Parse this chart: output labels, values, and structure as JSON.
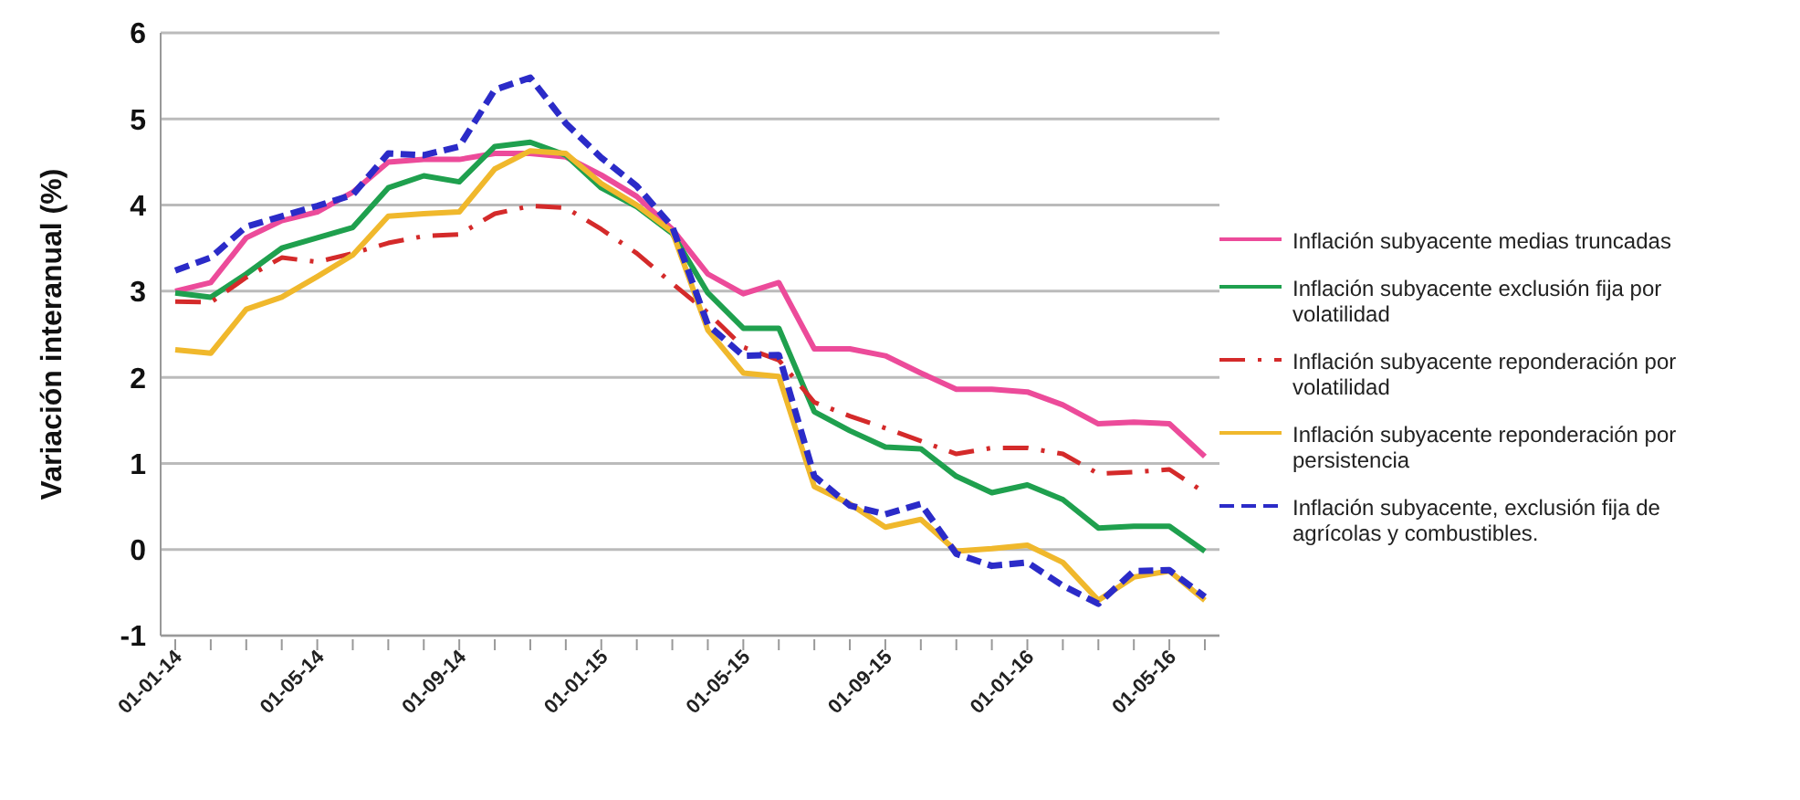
{
  "chart_data": {
    "type": "line",
    "ylabel": "Variación interanual (%)",
    "categories": [
      "01-01-14",
      null,
      null,
      null,
      "01-05-14",
      null,
      null,
      null,
      "01-09-14",
      null,
      null,
      null,
      "01-01-15",
      null,
      null,
      null,
      "01-05-15",
      null,
      null,
      null,
      "01-09-15",
      null,
      null,
      null,
      "01-01-16",
      null,
      null,
      null,
      "01-05-16",
      null
    ],
    "series": [
      {
        "name": "Inflación subyacente medias truncadas",
        "color": "#ec4b9a",
        "line_style": "solid",
        "values": [
          3.0,
          3.1,
          3.62,
          3.82,
          3.92,
          4.15,
          4.5,
          4.53,
          4.53,
          4.6,
          4.6,
          4.56,
          4.35,
          4.1,
          3.72,
          3.2,
          2.97,
          3.1,
          2.33,
          2.33,
          2.25,
          2.05,
          1.86,
          1.86,
          1.83,
          1.68,
          1.46,
          1.48,
          1.46,
          1.08
        ]
      },
      {
        "name": "Inflación subyacente exclusión fija por volatilidad",
        "color": "#1fa04e",
        "line_style": "solid",
        "values": [
          2.98,
          2.93,
          3.2,
          3.5,
          3.62,
          3.74,
          4.2,
          4.34,
          4.27,
          4.68,
          4.73,
          4.58,
          4.2,
          3.98,
          3.67,
          2.98,
          2.57,
          2.57,
          1.6,
          1.38,
          1.19,
          1.17,
          0.85,
          0.66,
          0.75,
          0.58,
          0.25,
          0.27,
          0.27,
          -0.02
        ]
      },
      {
        "name": "Inflación subyacente reponderación por volatilidad",
        "color": "#d42a2a",
        "line_style": "dashdot",
        "values": [
          2.88,
          2.87,
          3.16,
          3.39,
          3.34,
          3.44,
          3.56,
          3.64,
          3.66,
          3.9,
          3.99,
          3.97,
          3.72,
          3.44,
          3.09,
          2.75,
          2.35,
          2.2,
          1.71,
          1.55,
          1.41,
          1.26,
          1.11,
          1.18,
          1.18,
          1.11,
          0.88,
          0.9,
          0.93,
          0.66
        ]
      },
      {
        "name": "Inflación subyacente reponderación por persistencia",
        "color": "#f0b82c",
        "line_style": "solid",
        "values": [
          2.32,
          2.28,
          2.79,
          2.93,
          3.17,
          3.42,
          3.87,
          3.9,
          3.92,
          4.42,
          4.63,
          4.6,
          4.25,
          4.0,
          3.69,
          2.55,
          2.05,
          2.01,
          0.73,
          0.53,
          0.26,
          0.35,
          -0.02,
          0.01,
          0.05,
          -0.15,
          -0.59,
          -0.32,
          -0.25,
          -0.59
        ]
      },
      {
        "name": "Inflación subyacente, exclusión fija de agrícolas y combustibles.",
        "color": "#2b2bc8",
        "line_style": "dashed",
        "values": [
          3.24,
          3.39,
          3.75,
          3.87,
          3.99,
          4.12,
          4.6,
          4.58,
          4.68,
          5.34,
          5.48,
          4.95,
          4.55,
          4.22,
          3.75,
          2.61,
          2.25,
          2.26,
          0.85,
          0.51,
          0.41,
          0.53,
          -0.05,
          -0.19,
          -0.15,
          -0.42,
          -0.63,
          -0.25,
          -0.24,
          -0.55
        ]
      }
    ],
    "ylim": [
      -1,
      6
    ],
    "yticks": [
      -1,
      0,
      1,
      2,
      3,
      4,
      5,
      6
    ],
    "grid": "y",
    "legend": "right",
    "marker": "none"
  }
}
